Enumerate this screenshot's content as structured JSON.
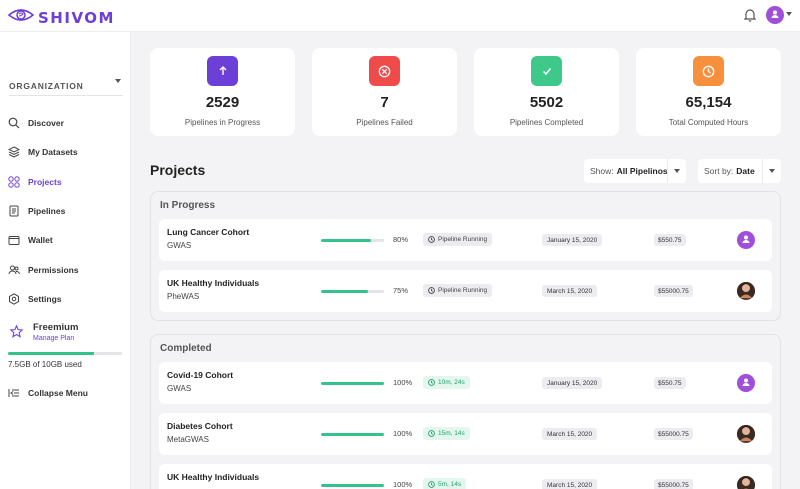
{
  "app": {
    "logo_text": "SHIVOM",
    "brand_color": "#6c3fd6"
  },
  "topbar": {
    "notification_icon": "bell-icon",
    "user_icon": "user-avatar-icon"
  },
  "sidebar": {
    "organization_label": "ORGANIZATION",
    "items": [
      {
        "label": "Discover",
        "icon": "search-icon",
        "active": false
      },
      {
        "label": "My Datasets",
        "icon": "layers-icon",
        "active": false
      },
      {
        "label": "Projects",
        "icon": "grid-icon",
        "active": true
      },
      {
        "label": "Pipelines",
        "icon": "document-icon",
        "active": false
      },
      {
        "label": "Wallet",
        "icon": "wallet-icon",
        "active": false
      },
      {
        "label": "Permissions",
        "icon": "users-icon",
        "active": false
      },
      {
        "label": "Settings",
        "icon": "gear-icon",
        "active": false
      }
    ],
    "plan": {
      "title": "Freemium",
      "link": "Manage Plan"
    },
    "storage": {
      "text": "7.5GB of 10GB used",
      "fraction": 0.75
    },
    "collapse_label": "Collapse Menu"
  },
  "stats": [
    {
      "value": "2529",
      "label": "Pipelines in Progress",
      "color": "#6c3fd6",
      "icon": "arrow-up-icon"
    },
    {
      "value": "7",
      "label": "Pipelines Failed",
      "color": "#ef4b4b",
      "icon": "x-circle-icon"
    },
    {
      "value": "5502",
      "label": "Pipelines Completed",
      "color": "#3ec98a",
      "icon": "check-icon"
    },
    {
      "value": "65,154",
      "label": "Total Computed Hours",
      "color": "#f7903c",
      "icon": "clock-icon"
    }
  ],
  "projects": {
    "title": "Projects",
    "show": {
      "prefix": "Show:",
      "value": "All Pipelinos"
    },
    "sort": {
      "prefix": "Sort by:",
      "value": "Date"
    },
    "in_progress": {
      "title": "In Progress",
      "rows": [
        {
          "name": "Lung Cancer Cohort",
          "type": "GWAS",
          "progress": 0.8,
          "percent": "80%",
          "status": "Pipeline Running",
          "date": "January 15, 2020",
          "cost": "$550.75",
          "avatar": "purple"
        },
        {
          "name": "UK Healthy Individuals",
          "type": "PheWAS",
          "progress": 0.75,
          "percent": "75%",
          "status": "Pipeline Running",
          "date": "March 15, 2020",
          "cost": "$55000.75",
          "avatar": "photo"
        }
      ]
    },
    "completed": {
      "title": "Completed",
      "rows": [
        {
          "name": "Covid-19 Cohort",
          "type": "GWAS",
          "progress": 1.0,
          "percent": "100%",
          "status": "10m, 24s",
          "date": "January 15, 2020",
          "cost": "$550.75",
          "avatar": "purple"
        },
        {
          "name": "Diabetes Cohort",
          "type": "MetaGWAS",
          "progress": 1.0,
          "percent": "100%",
          "status": "15m, 14s",
          "date": "March 15, 2020",
          "cost": "$55000.75",
          "avatar": "photo"
        },
        {
          "name": "UK Healthy Individuals",
          "type": "",
          "progress": 1.0,
          "percent": "100%",
          "status": "5m, 14s",
          "date": "March 15, 2020",
          "cost": "$55000.75",
          "avatar": "photo"
        }
      ]
    }
  }
}
